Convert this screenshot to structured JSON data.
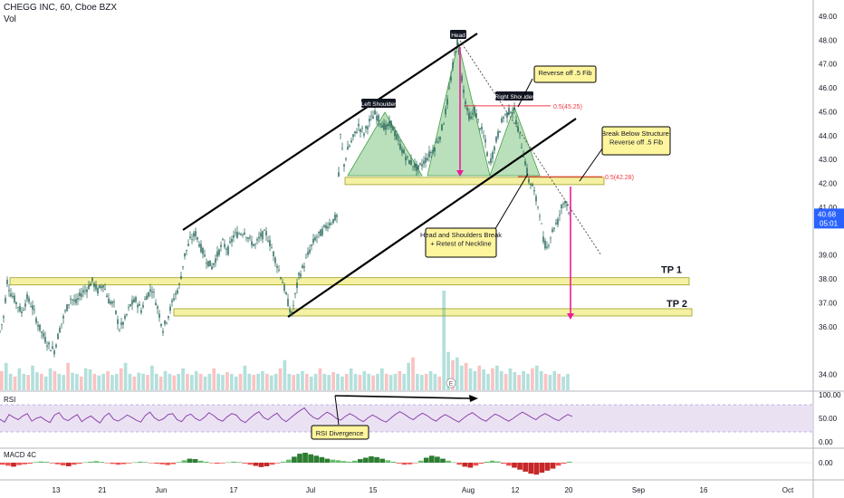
{
  "chart_data": {
    "type": "candlestick",
    "symbol": "CHEGG INC",
    "interval": "60",
    "exchange": "Cboe BZX",
    "title": "CHEGG INC, 60, Cboe BZX",
    "volume_label": "Vol",
    "price_axis": {
      "ticks": [
        "49.00",
        "48.00",
        "47.00",
        "46.00",
        "45.00",
        "44.00",
        "43.00",
        "42.00",
        "41.00",
        "39.00",
        "38.00",
        "37.00",
        "36.00",
        "34.00"
      ],
      "ylim": [
        33.3,
        49.3
      ],
      "last_price": "40.68",
      "countdown": "05:01"
    },
    "time_axis": {
      "ticks": [
        "13",
        "21",
        "Jun",
        "17",
        "Jul",
        "15",
        "Aug",
        "12",
        "20",
        "Sep",
        "16",
        "Oct"
      ]
    },
    "price_path": [
      [
        0,
        35.8
      ],
      [
        4,
        36.4
      ],
      [
        8,
        37.9
      ],
      [
        12,
        37.4
      ],
      [
        18,
        37.0
      ],
      [
        24,
        36.6
      ],
      [
        30,
        37.2
      ],
      [
        36,
        36.8
      ],
      [
        42,
        36.1
      ],
      [
        48,
        35.6
      ],
      [
        54,
        35.2
      ],
      [
        60,
        35.0
      ],
      [
        66,
        35.9
      ],
      [
        72,
        36.6
      ],
      [
        78,
        37.2
      ],
      [
        84,
        37.0
      ],
      [
        90,
        37.4
      ],
      [
        96,
        37.6
      ],
      [
        102,
        37.9
      ],
      [
        108,
        37.5
      ],
      [
        114,
        37.8
      ],
      [
        120,
        37.1
      ],
      [
        126,
        36.9
      ],
      [
        132,
        35.9
      ],
      [
        138,
        36.3
      ],
      [
        144,
        36.9
      ],
      [
        150,
        37.1
      ],
      [
        156,
        36.7
      ],
      [
        162,
        37.3
      ],
      [
        168,
        37.6
      ],
      [
        174,
        36.8
      ],
      [
        180,
        35.9
      ],
      [
        186,
        36.5
      ],
      [
        192,
        37.2
      ],
      [
        198,
        37.7
      ],
      [
        204,
        39.0
      ],
      [
        210,
        39.6
      ],
      [
        216,
        39.9
      ],
      [
        222,
        39.3
      ],
      [
        228,
        38.8
      ],
      [
        234,
        38.5
      ],
      [
        240,
        39.0
      ],
      [
        246,
        39.5
      ],
      [
        252,
        39.2
      ],
      [
        258,
        39.8
      ],
      [
        264,
        39.9
      ],
      [
        270,
        40.0
      ],
      [
        276,
        39.6
      ],
      [
        282,
        39.4
      ],
      [
        288,
        39.8
      ],
      [
        294,
        39.9
      ],
      [
        300,
        39.3
      ],
      [
        306,
        38.6
      ],
      [
        312,
        37.9
      ],
      [
        318,
        37.0
      ],
      [
        322,
        36.5
      ],
      [
        326,
        37.3
      ],
      [
        330,
        38.1
      ],
      [
        336,
        38.6
      ],
      [
        342,
        39.2
      ],
      [
        348,
        39.7
      ],
      [
        354,
        39.9
      ],
      [
        360,
        40.2
      ],
      [
        366,
        40.4
      ],
      [
        372,
        40.6
      ],
      [
        376,
        44.0
      ],
      [
        380,
        42.8
      ],
      [
        384,
        43.4
      ],
      [
        390,
        43.9
      ],
      [
        396,
        44.4
      ],
      [
        402,
        44.1
      ],
      [
        408,
        44.6
      ],
      [
        414,
        44.9
      ],
      [
        420,
        44.6
      ],
      [
        426,
        44.3
      ],
      [
        432,
        44.5
      ],
      [
        438,
        43.9
      ],
      [
        444,
        43.4
      ],
      [
        450,
        43.0
      ],
      [
        456,
        42.8
      ],
      [
        462,
        42.6
      ],
      [
        468,
        42.9
      ],
      [
        474,
        43.2
      ],
      [
        480,
        43.5
      ],
      [
        486,
        44.0
      ],
      [
        490,
        44.6
      ],
      [
        494,
        45.4
      ],
      [
        498,
        46.4
      ],
      [
        502,
        47.4
      ],
      [
        505,
        47.9
      ],
      [
        508,
        47.0
      ],
      [
        512,
        45.9
      ],
      [
        516,
        45.0
      ],
      [
        520,
        44.7
      ],
      [
        524,
        45.1
      ],
      [
        528,
        44.6
      ],
      [
        532,
        44.2
      ],
      [
        536,
        43.7
      ],
      [
        540,
        42.8
      ],
      [
        544,
        43.2
      ],
      [
        548,
        43.8
      ],
      [
        552,
        44.3
      ],
      [
        556,
        44.8
      ],
      [
        560,
        44.9
      ],
      [
        564,
        45.1
      ],
      [
        568,
        45.0
      ],
      [
        572,
        44.3
      ],
      [
        576,
        43.6
      ],
      [
        580,
        42.9
      ],
      [
        584,
        42.1
      ],
      [
        588,
        41.9
      ],
      [
        592,
        41.3
      ],
      [
        596,
        40.8
      ],
      [
        600,
        39.6
      ],
      [
        604,
        39.3
      ],
      [
        608,
        39.8
      ],
      [
        612,
        40.2
      ],
      [
        616,
        40.4
      ],
      [
        620,
        41.0
      ],
      [
        624,
        41.3
      ],
      [
        628,
        40.9
      ],
      [
        632,
        40.68
      ]
    ],
    "volume_bars_relative": [
      0.35,
      0.5,
      0.3,
      0.25,
      0.4,
      0.3,
      0.28,
      0.45,
      0.33,
      0.3,
      0.25,
      0.4,
      0.35,
      0.3,
      0.28,
      0.5,
      0.32,
      0.3,
      0.25,
      0.4,
      0.38,
      0.3,
      0.27,
      0.3,
      0.35,
      0.28,
      0.3,
      0.4,
      0.5,
      0.3,
      0.25,
      0.32,
      0.3,
      0.28,
      0.45,
      0.3,
      0.25,
      0.35,
      0.3,
      0.27,
      0.3,
      0.4,
      0.3,
      0.28,
      0.35,
      0.3,
      0.25,
      0.3,
      0.4,
      0.3,
      0.28,
      0.33,
      0.3,
      0.25,
      0.3,
      0.45,
      0.3,
      0.28,
      0.3,
      0.35,
      0.3,
      0.27,
      0.3,
      0.4,
      0.55,
      0.3,
      0.28,
      0.3,
      0.35,
      0.3,
      0.25,
      0.3,
      0.4,
      0.3,
      0.28,
      0.33,
      0.3,
      0.25,
      0.3,
      0.4,
      0.3,
      0.28,
      0.35,
      0.3,
      0.27,
      0.3,
      0.4,
      0.3,
      0.28,
      0.3,
      0.35,
      0.3,
      0.5,
      0.6,
      0.3,
      0.28,
      0.3,
      0.35,
      0.3,
      0.25,
      1.0,
      0.7,
      0.55,
      0.6,
      0.45,
      0.5,
      0.4,
      0.35,
      0.45,
      0.38,
      0.3,
      0.4,
      0.45,
      0.35,
      0.3,
      0.4,
      0.33,
      0.28,
      0.35,
      0.3,
      0.4,
      0.45,
      0.35,
      0.3,
      0.28,
      0.35,
      0.3,
      0.25,
      0.3
    ],
    "rsi": {
      "label": "RSI",
      "ticks": [
        "100.00",
        "50.00",
        "0.00"
      ],
      "values": [
        48,
        42,
        58,
        52,
        47,
        55,
        60,
        44,
        50,
        53,
        46,
        41,
        57,
        62,
        49,
        45,
        52,
        58,
        43,
        50,
        55,
        47,
        40,
        54,
        61,
        48,
        44,
        50,
        57,
        52,
        46,
        42,
        56,
        63,
        51,
        45,
        49,
        58,
        60,
        47,
        43,
        55,
        59,
        50,
        45,
        52,
        62,
        56,
        48,
        44,
        53,
        60,
        57,
        46,
        41,
        50,
        58,
        64,
        52,
        47,
        55,
        61,
        49,
        43,
        51,
        59,
        66,
        72,
        60,
        52,
        48,
        56,
        63,
        58,
        50,
        46,
        54,
        60,
        55,
        48,
        43,
        51,
        57,
        52,
        46,
        42,
        50,
        58,
        64,
        59,
        52,
        47,
        55,
        61,
        56,
        49,
        44,
        52,
        58,
        53,
        47,
        42,
        50,
        57,
        62,
        55,
        48,
        44,
        52,
        59,
        55,
        49,
        44,
        50,
        57,
        63,
        58,
        52,
        47,
        55,
        60,
        55,
        49,
        45,
        52,
        58,
        54
      ]
    },
    "macd": {
      "label": "MACD 4C",
      "ticks": [
        "0.00"
      ],
      "values": [
        -0.1,
        -0.15,
        -0.2,
        -0.12,
        -0.08,
        -0.05,
        0.03,
        0.06,
        0.04,
        -0.03,
        -0.08,
        -0.14,
        -0.18,
        -0.1,
        -0.05,
        0.02,
        0.05,
        0.08,
        0.04,
        -0.02,
        -0.06,
        -0.1,
        -0.07,
        -0.03,
        0.02,
        0.05,
        0.03,
        -0.02,
        -0.05,
        -0.08,
        -0.12,
        -0.07,
        0.03,
        0.12,
        0.2,
        0.18,
        0.1,
        0.05,
        -0.02,
        -0.05,
        -0.03,
        0.02,
        0.05,
        0.03,
        -0.04,
        -0.1,
        -0.16,
        -0.22,
        -0.18,
        -0.1,
        -0.03,
        0.05,
        0.15,
        0.3,
        0.45,
        0.5,
        0.42,
        0.35,
        0.28,
        0.2,
        0.15,
        0.12,
        0.08,
        0.05,
        0.1,
        0.18,
        0.25,
        0.32,
        0.28,
        0.2,
        0.12,
        0.05,
        -0.04,
        -0.1,
        -0.08,
        -0.02,
        0.1,
        0.25,
        0.35,
        0.3,
        0.2,
        0.1,
        0.02,
        -0.1,
        -0.2,
        -0.25,
        -0.15,
        -0.05,
        0.05,
        0.1,
        0.06,
        -0.05,
        -0.15,
        -0.25,
        -0.35,
        -0.45,
        -0.55,
        -0.6,
        -0.5,
        -0.4,
        -0.3,
        -0.15,
        -0.05,
        0.05
      ]
    },
    "annotations": {
      "head": "Head",
      "left_shoulder": "Left Shoulder",
      "right_shoulder": "Right Shoulder",
      "reverse_fib_1": "Reverse off .5 Fib",
      "break_below": "Break Below Structure, Reverse off .5 Fib",
      "break_below_line1": "Break Below Structure,",
      "break_below_line2": "Reverse off .5 Fib",
      "hs_break_line1": "Head and Shoulders Break",
      "hs_break_line2": "+ Retest of Neckline",
      "rsi_divergence": "RSI Divergence",
      "tp1": "TP 1",
      "tp2": "TP 2",
      "fib_high": "0.5(45.25)",
      "fib_low": "0.5(42.28)",
      "earnings_marker": "E"
    },
    "levels": {
      "tp1_price": 37.9,
      "tp2_price": 36.6,
      "neckline_price": 42.1,
      "fib_high_price": 45.25,
      "fib_low_price": 42.28
    },
    "colors": {
      "up": "#26a69a",
      "down": "#ef5350",
      "candle": "#1b5e52",
      "pattern_fill": "#81c784",
      "zone_fill": "#f5f1a3",
      "zone_stroke": "#9e9d24",
      "rsi_line": "#8e44ad",
      "rsi_band": "#e1d5ee",
      "arrow": "#e91e9b",
      "fib_line": "#f23645",
      "callout_fill": "#fff59d",
      "last_price_bg": "#2962ff"
    }
  }
}
